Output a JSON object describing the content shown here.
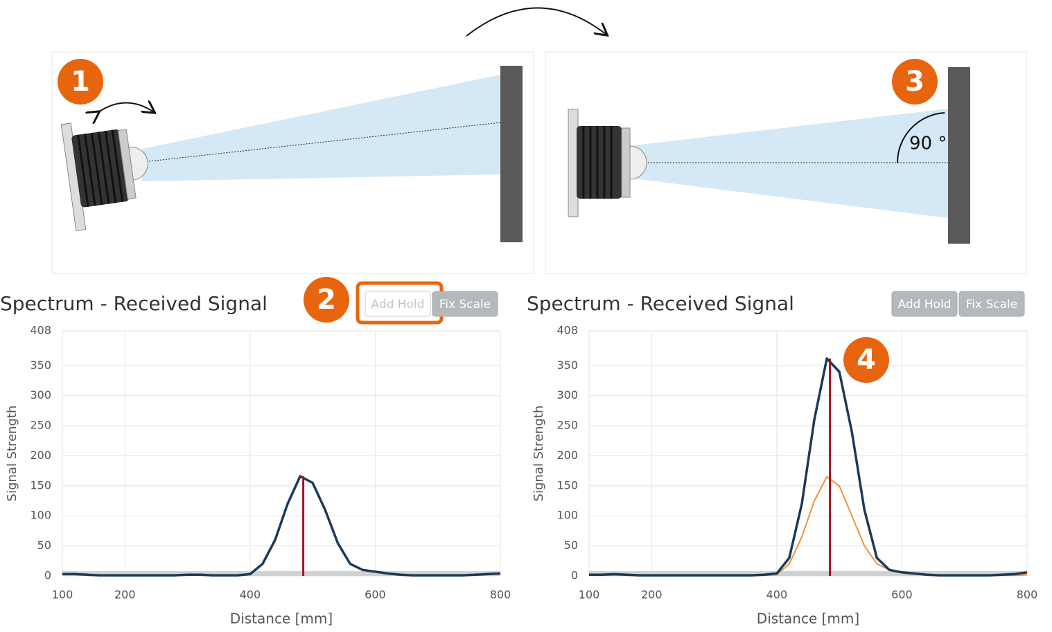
{
  "markers": [
    "1",
    "2",
    "3",
    "4"
  ],
  "angle_label": "90 °",
  "chart_data": [
    {
      "type": "line",
      "title": "Spectrum - Received Signal",
      "buttons": [
        "Add Hold",
        "Fix Scale"
      ],
      "xlabel": "Distance [mm]",
      "ylabel": "Signal Strength",
      "xlim": [
        100,
        800
      ],
      "xticks": [
        100,
        200,
        400,
        600,
        800
      ],
      "ylim": [
        0,
        408
      ],
      "yticks": [
        0,
        50,
        100,
        150,
        200,
        250,
        300,
        350,
        408
      ],
      "grid": true,
      "threshold": 8,
      "peak": 485,
      "peak_color": "#a3121e",
      "x": [
        100,
        120,
        140,
        160,
        180,
        200,
        220,
        240,
        260,
        280,
        300,
        320,
        340,
        360,
        380,
        400,
        420,
        440,
        460,
        480,
        500,
        520,
        540,
        560,
        580,
        600,
        620,
        640,
        660,
        680,
        700,
        720,
        740,
        760,
        780,
        800
      ],
      "series": [
        {
          "color": "#1c3a57",
          "values": [
            3,
            3,
            2,
            1,
            1,
            1,
            1,
            1,
            1,
            1,
            2,
            2,
            1,
            1,
            1,
            3,
            20,
            60,
            120,
            166,
            155,
            110,
            55,
            20,
            10,
            7,
            4,
            2,
            1,
            1,
            1,
            1,
            1,
            2,
            3,
            4
          ]
        }
      ]
    },
    {
      "type": "line",
      "title": "Spectrum - Received Signal",
      "buttons": [
        "Add Hold",
        "Fix Scale"
      ],
      "xlabel": "Distance [mm]",
      "ylabel": "Signal Strength",
      "xlim": [
        100,
        800
      ],
      "xticks": [
        100,
        200,
        400,
        600,
        800
      ],
      "ylim": [
        0,
        408
      ],
      "yticks": [
        0,
        50,
        100,
        150,
        200,
        250,
        300,
        350,
        408
      ],
      "grid": true,
      "threshold": 8,
      "peak": 485,
      "peak_color": "#a3121e",
      "x": [
        100,
        120,
        140,
        160,
        180,
        200,
        220,
        240,
        260,
        280,
        300,
        320,
        340,
        360,
        380,
        400,
        420,
        440,
        460,
        480,
        500,
        520,
        540,
        560,
        580,
        600,
        620,
        640,
        660,
        680,
        700,
        720,
        740,
        760,
        780,
        800
      ],
      "series": [
        {
          "color": "#1c3a57",
          "values": [
            2,
            2,
            3,
            2,
            1,
            1,
            1,
            1,
            1,
            1,
            1,
            1,
            1,
            1,
            2,
            4,
            30,
            120,
            260,
            362,
            340,
            240,
            110,
            30,
            10,
            6,
            4,
            2,
            1,
            1,
            1,
            1,
            1,
            2,
            3,
            6
          ]
        },
        {
          "color": "#f0903a",
          "values": [
            1,
            1,
            1,
            1,
            1,
            1,
            1,
            1,
            1,
            1,
            1,
            1,
            1,
            1,
            1,
            2,
            20,
            65,
            125,
            165,
            150,
            100,
            50,
            20,
            10,
            5,
            3,
            2,
            1,
            1,
            1,
            1,
            1,
            1,
            1,
            2
          ]
        }
      ]
    }
  ]
}
